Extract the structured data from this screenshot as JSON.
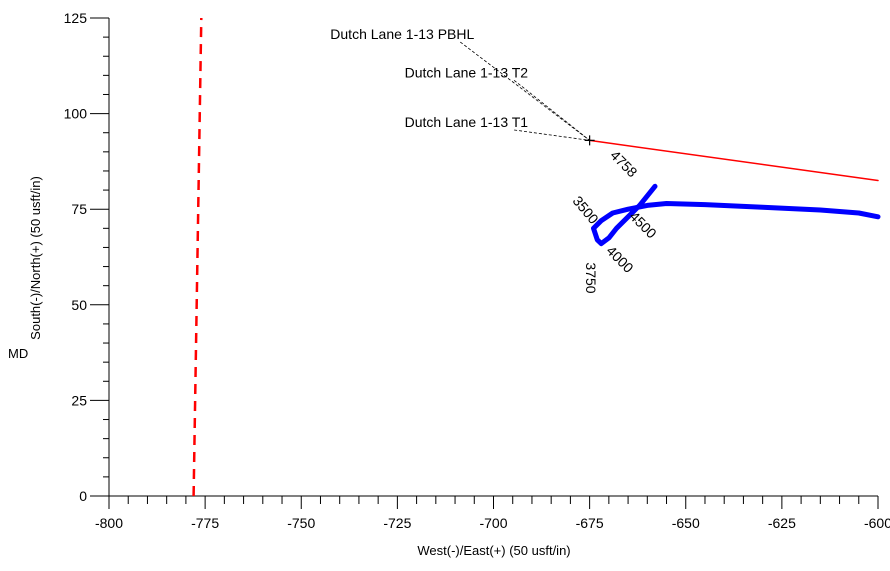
{
  "chart_data": {
    "type": "line",
    "title": "",
    "xlabel": "West(-)/East(+)  (50 usft/in)",
    "ylabel": "South(-)/North(+)  (50 usft/in)",
    "side_label": "MD",
    "xlim": [
      -800,
      -600
    ],
    "ylim": [
      0,
      125
    ],
    "x_ticks": [
      -800,
      -775,
      -750,
      -725,
      -700,
      -675,
      -650,
      -625,
      -600
    ],
    "y_ticks": [
      0,
      25,
      50,
      75,
      100,
      125
    ],
    "grid": false,
    "legend": "none",
    "series": [
      {
        "style": "dashed",
        "color": "#ff0000",
        "points": [
          [
            -778,
            0
          ],
          [
            -776,
            125
          ]
        ]
      },
      {
        "style": "thin",
        "color": "#ff0000",
        "points": [
          [
            -675,
            93
          ],
          [
            -600,
            82.5
          ]
        ]
      },
      {
        "style": "bold",
        "color": "#0000ff",
        "points": [
          [
            -658,
            81
          ],
          [
            -662,
            76
          ],
          [
            -665,
            73
          ],
          [
            -668,
            70
          ],
          [
            -670,
            67.5
          ],
          [
            -672,
            66
          ],
          [
            -673,
            67
          ],
          [
            -674,
            70
          ],
          [
            -672,
            72
          ],
          [
            -669,
            74
          ],
          [
            -665,
            75
          ],
          [
            -660,
            76
          ],
          [
            -655,
            76.5
          ],
          [
            -645,
            76.2
          ],
          [
            -630,
            75.5
          ],
          [
            -615,
            74.8
          ],
          [
            -605,
            74
          ],
          [
            -600,
            73
          ]
        ]
      }
    ],
    "annotations": [
      {
        "text": "Dutch Lane 1-13 PBHL",
        "x": -705,
        "y": 119.5,
        "target": [
          -675,
          93
        ],
        "anchor": "end"
      },
      {
        "text": "Dutch Lane 1-13 T2",
        "x": -691,
        "y": 109.5,
        "target": [
          -675,
          93
        ],
        "anchor": "end"
      },
      {
        "text": "Dutch Lane 1-13 T1",
        "x": -691,
        "y": 96.5,
        "target": [
          -675,
          93
        ],
        "anchor": "end"
      }
    ],
    "md_labels": [
      {
        "text": "3500",
        "x": -677,
        "y": 74,
        "rotate": 50
      },
      {
        "text": "3750",
        "x": -676,
        "y": 57,
        "rotate": 90
      },
      {
        "text": "4000",
        "x": -668,
        "y": 61,
        "rotate": 45
      },
      {
        "text": "4500",
        "x": -662,
        "y": 70,
        "rotate": 45
      },
      {
        "text": "4758",
        "x": -667,
        "y": 86,
        "rotate": 45
      }
    ]
  }
}
